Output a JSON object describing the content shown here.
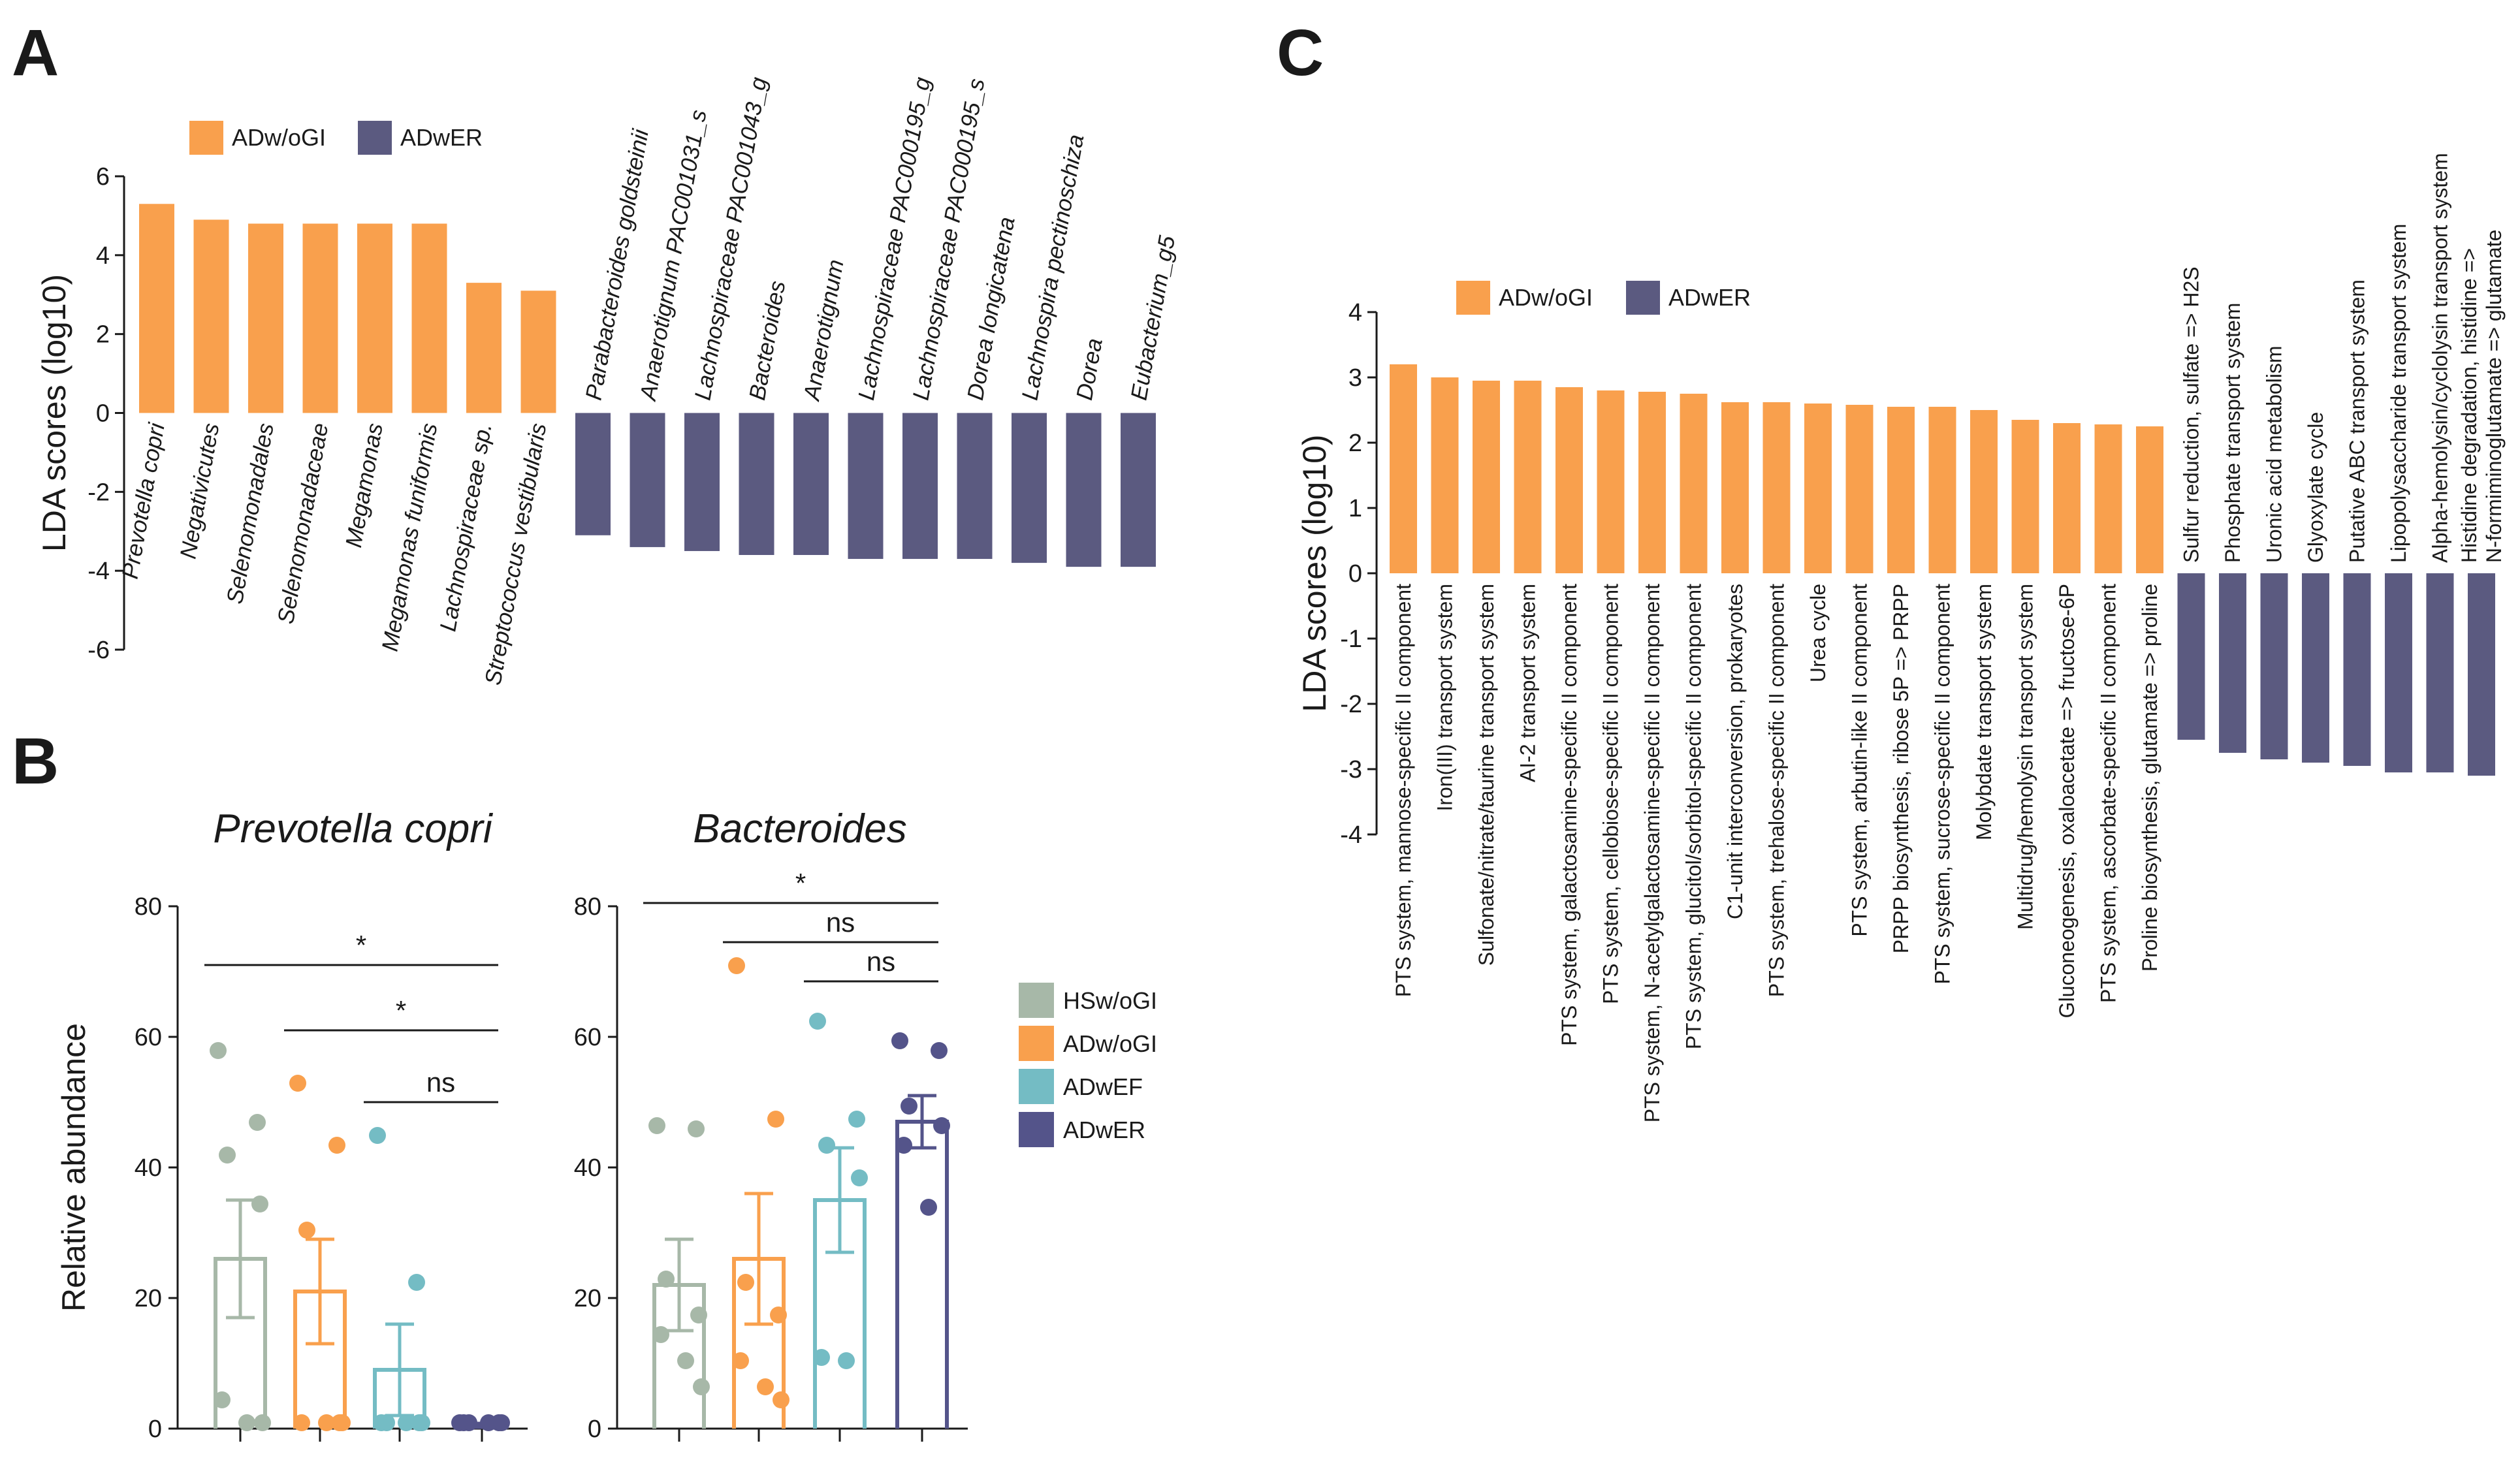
{
  "colors": {
    "orange": "#F9A04D",
    "purple": "#5B5A80",
    "gray": "#A7B8A8",
    "orange_b": "#F9A04D",
    "teal": "#74BCC4",
    "navy": "#54548A"
  },
  "panel_labels": {
    "a": "A",
    "b": "B",
    "c": "C"
  },
  "chart_data": [
    {
      "panel": "A",
      "type": "bar",
      "ylabel": "LDA scores (log10)",
      "ylim": [
        -6,
        6
      ],
      "yticks": [
        "-6",
        "-4",
        "-2",
        "0",
        "2",
        "4",
        "6"
      ],
      "legend": [
        "ADw/oGI",
        "ADwER"
      ],
      "series": [
        {
          "name": "ADw/oGI",
          "categories": [
            "Prevotella copri",
            "Negativicutes",
            "Selenomonadales",
            "Selenomonadaceae",
            "Megamonas",
            "Megamonas funiformis",
            "Lachnospiraceae sp.",
            "Streptococcus vestibularis"
          ],
          "values": [
            5.3,
            4.9,
            4.8,
            4.8,
            4.8,
            4.8,
            3.3,
            3.1
          ]
        },
        {
          "name": "ADwER",
          "categories": [
            "Parabacteroides goldsteinii",
            "Anaerotignum PAC001031_s",
            "Lachnospiraceae PAC001043_g",
            "Bacteroides",
            "Anaerotignum",
            "Lachnospiraceae PAC000195_g",
            "Lachnospiraceae PAC000195_s",
            "Dorea longicatena",
            "Lachnospira pectinoschiza",
            "Dorea",
            "Eubacterium_g5"
          ],
          "values": [
            -3.1,
            -3.4,
            -3.5,
            -3.6,
            -3.6,
            -3.7,
            -3.7,
            -3.7,
            -3.8,
            -3.9,
            -3.9
          ]
        }
      ]
    },
    {
      "panel": "B",
      "type": "bar",
      "ylabel": "Relative abundance",
      "ylim": [
        0,
        80
      ],
      "yticks": [
        "0",
        "20",
        "40",
        "60",
        "80"
      ],
      "legend": [
        "HSw/oGI",
        "ADw/oGI",
        "ADwEF",
        "ADwER"
      ],
      "subplots": [
        {
          "title": "Prevotella copri",
          "groups": [
            {
              "name": "HSw/oGI",
              "mean": 26,
              "sem": 9,
              "points": [
                57.5,
                46.5,
                41.5,
                34,
                4,
                0.5,
                0.5
              ]
            },
            {
              "name": "ADw/oGI",
              "mean": 21,
              "sem": 8,
              "points": [
                52.5,
                43,
                30,
                0.5,
                0.5,
                0.5,
                0.5
              ]
            },
            {
              "name": "ADwEF",
              "mean": 9,
              "sem": 7,
              "points": [
                44.5,
                22,
                0.5,
                0.5,
                0.5,
                0.5,
                0.5
              ]
            },
            {
              "name": "ADwER",
              "mean": 0.5,
              "sem": 0.3,
              "points": [
                0.5,
                0.5,
                0.5,
                0.5,
                0.5,
                0.5
              ]
            }
          ],
          "comparisons": [
            {
              "from": 0,
              "to": 3,
              "label": "*",
              "y": 71
            },
            {
              "from": 1,
              "to": 3,
              "label": "*",
              "y": 61
            },
            {
              "from": 2,
              "to": 3,
              "label": "ns",
              "y": 50
            }
          ]
        },
        {
          "title": "Bacteroides",
          "groups": [
            {
              "name": "HSw/oGI",
              "mean": 22,
              "sem": 7,
              "points": [
                46,
                45.5,
                22.5,
                17,
                14,
                10,
                6
              ]
            },
            {
              "name": "ADw/oGI",
              "mean": 26,
              "sem": 10,
              "points": [
                70.5,
                47,
                22,
                17,
                10,
                6,
                4
              ]
            },
            {
              "name": "ADwEF",
              "mean": 35,
              "sem": 8,
              "points": [
                62,
                47,
                43,
                38,
                10.5,
                10
              ]
            },
            {
              "name": "ADwER",
              "mean": 47,
              "sem": 4,
              "points": [
                59,
                57.5,
                49,
                46,
                43,
                33.5
              ]
            }
          ],
          "comparisons": [
            {
              "from": 0,
              "to": 3,
              "label": "*",
              "y": 80.5
            },
            {
              "from": 1,
              "to": 3,
              "label": "ns",
              "y": 74.5
            },
            {
              "from": 2,
              "to": 3,
              "label": "ns",
              "y": 68.5
            }
          ]
        }
      ]
    },
    {
      "panel": "C",
      "type": "bar",
      "ylabel": "LDA scores (log10)",
      "ylim": [
        -4,
        4
      ],
      "yticks": [
        "-4",
        "-3",
        "-2",
        "-1",
        "0",
        "1",
        "2",
        "3",
        "4"
      ],
      "legend": [
        "ADw/oGI",
        "ADwER"
      ],
      "series": [
        {
          "name": "ADw/oGI",
          "categories": [
            "PTS system, mannose-specific II component",
            "Iron(III) transport system",
            "Sulfonate/nitrate/taurine transport system",
            "AI-2 transport system",
            "PTS system, galactosamine-specific II component",
            "PTS system, cellobiose-specific II component",
            "PTS system, N-acetylgalactosamine-specific II component",
            "PTS system, glucitol/sorbitol-specific II component",
            "C1-unit interconversion, prokaryotes",
            "PTS system, trehalose-specific II component",
            "Urea cycle",
            "PTS system, arbutin-like II component",
            "PRPP biosynthesis, ribose 5P => PRPP",
            "PTS system, sucrose-specific II component",
            "Molybdate transport system",
            "Multidrug/hemolysin transport system",
            "Gluconeogenesis, oxaloacetate => fructose-6P",
            "PTS system, ascorbate-specific II component",
            "Proline biosynthesis, glutamate => proline"
          ],
          "values": [
            3.2,
            3.0,
            2.95,
            2.95,
            2.85,
            2.8,
            2.78,
            2.75,
            2.62,
            2.62,
            2.6,
            2.58,
            2.55,
            2.55,
            2.5,
            2.35,
            2.3,
            2.28,
            2.25
          ]
        },
        {
          "name": "ADwER",
          "categories": [
            "Sulfur reduction, sulfate => H2S",
            "Phosphate transport system",
            "Uronic acid metabolism",
            "Glyoxylate cycle",
            "Putative ABC transport system",
            "Lipopolysaccharide transport system",
            "Alpha-hemolysin/cyclolysin transport system",
            "Histidine degradation, histidine => N-formiminoglutamate => glutamate"
          ],
          "display_lines": [
            [
              "Sulfur reduction, sulfate => H2S"
            ],
            [
              "Phosphate transport system"
            ],
            [
              "Uronic acid metabolism"
            ],
            [
              "Glyoxylate cycle"
            ],
            [
              "Putative ABC transport system"
            ],
            [
              "Lipopolysaccharide transport system"
            ],
            [
              "Alpha-hemolysin/cyclolysin transport system"
            ],
            [
              "Histidine degradation, histidine =>",
              "N-formiminoglutamate => glutamate"
            ]
          ],
          "values": [
            -2.55,
            -2.75,
            -2.85,
            -2.9,
            -2.95,
            -3.05,
            -3.05,
            -3.1
          ]
        }
      ]
    }
  ]
}
